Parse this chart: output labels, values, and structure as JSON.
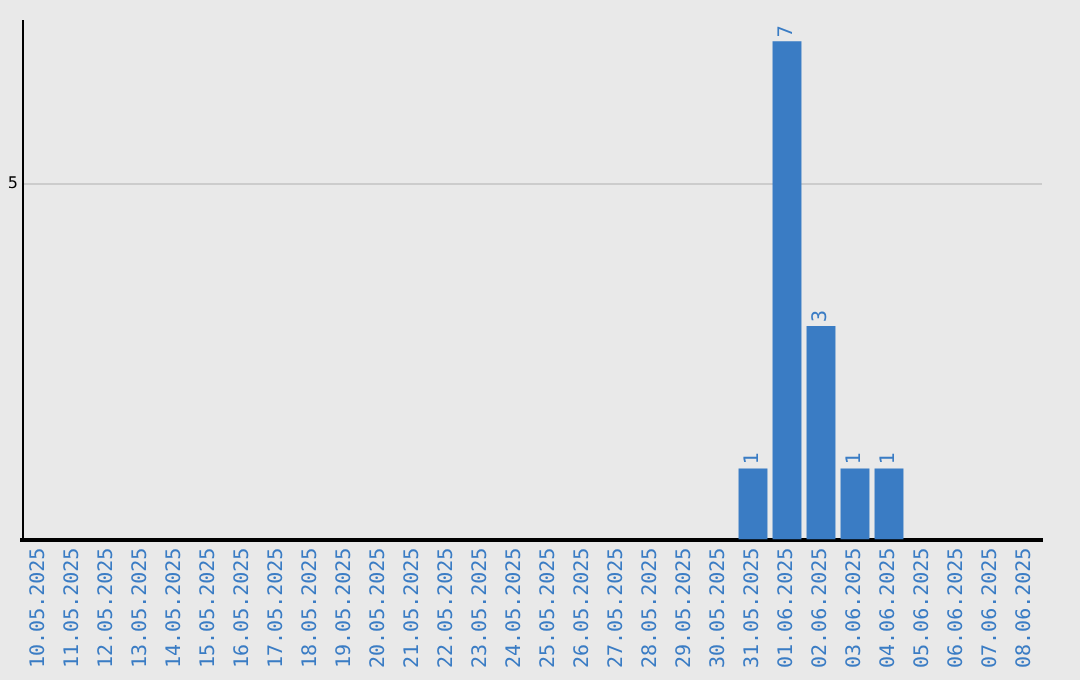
{
  "chart_data": {
    "type": "bar",
    "ylim": [
      0,
      7.3
    ],
    "yticks": [
      5
    ],
    "grid": "y",
    "categories": [
      "10.05.2025",
      "11.05.2025",
      "12.05.2025",
      "13.05.2025",
      "14.05.2025",
      "15.05.2025",
      "16.05.2025",
      "17.05.2025",
      "18.05.2025",
      "19.05.2025",
      "20.05.2025",
      "21.05.2025",
      "22.05.2025",
      "23.05.2025",
      "24.05.2025",
      "25.05.2025",
      "26.05.2025",
      "27.05.2025",
      "28.05.2025",
      "29.05.2025",
      "30.05.2025",
      "31.05.2025",
      "01.06.2025",
      "02.06.2025",
      "03.06.2025",
      "04.06.2025",
      "05.06.2025",
      "06.06.2025",
      "07.06.2025",
      "08.06.2025"
    ],
    "values": [
      null,
      null,
      null,
      null,
      null,
      null,
      null,
      null,
      null,
      null,
      null,
      null,
      null,
      null,
      null,
      null,
      null,
      null,
      null,
      null,
      null,
      1,
      7,
      3,
      1,
      1,
      null,
      null,
      null,
      null
    ],
    "data_labels": true,
    "color": "#3a7cc4",
    "legend": false
  }
}
